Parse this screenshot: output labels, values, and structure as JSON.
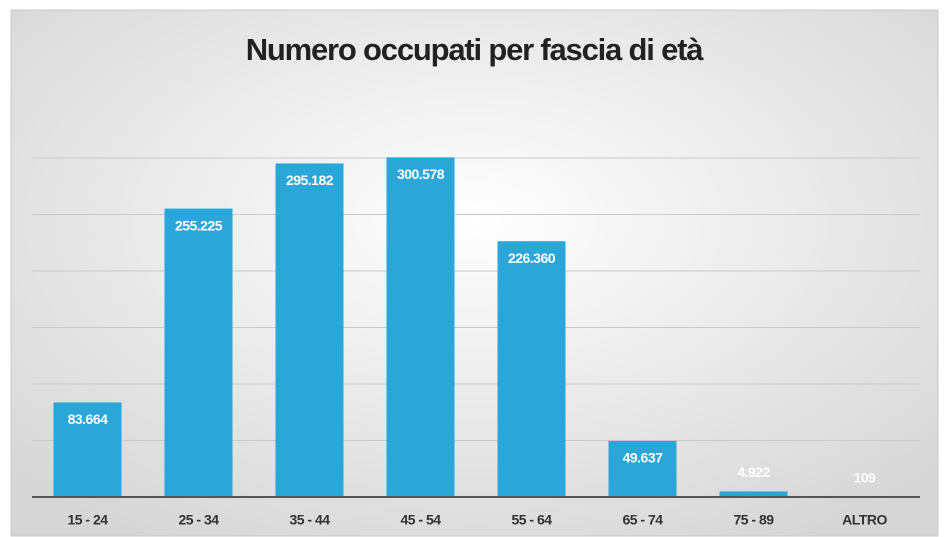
{
  "chart_data": {
    "type": "bar",
    "title": "Numero occupati per fascia di età",
    "categories": [
      "15 - 24",
      "25 - 34",
      "35 - 44",
      "45 - 54",
      "55 - 64",
      "65 - 74",
      "75 - 89",
      "ALTRO"
    ],
    "values": [
      83664,
      255225,
      295182,
      300578,
      226360,
      49637,
      4922,
      109
    ],
    "value_labels": [
      "83.664",
      "255.225",
      "295.182",
      "300.578",
      "226.360",
      "49.637",
      "4.922",
      "109"
    ],
    "color": "#2aa6d9",
    "ylim": [
      0,
      350000
    ],
    "yticks": [
      0,
      50000,
      100000,
      150000,
      200000,
      250000,
      300000
    ],
    "grid": true
  }
}
